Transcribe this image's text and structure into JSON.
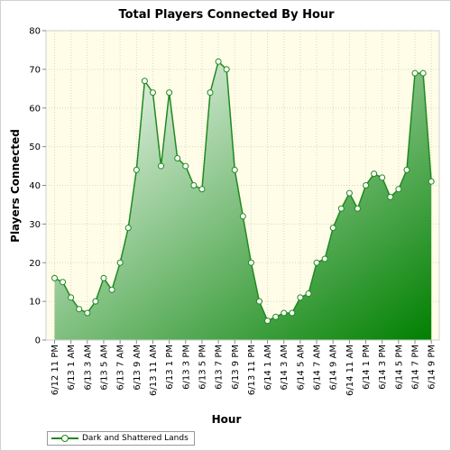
{
  "chart_data": {
    "type": "area",
    "title": "Total Players Connected By Hour",
    "xlabel": "Hour",
    "ylabel": "Players Connected",
    "ylim": [
      0,
      80
    ],
    "yticks": [
      0,
      10,
      20,
      30,
      40,
      50,
      60,
      70,
      80
    ],
    "grid": true,
    "legend_position": "bottom-left",
    "x_tick_labels": [
      "6/12 11 PM",
      "6/13 1 AM",
      "6/13 3 AM",
      "6/13 5 AM",
      "6/13 7 AM",
      "6/13 9 AM",
      "6/13 11 AM",
      "6/13 1 PM",
      "6/13 3 PM",
      "6/13 5 PM",
      "6/13 7 PM",
      "6/13 9 PM",
      "6/13 11 PM",
      "6/14 1 AM",
      "6/14 3 AM",
      "6/14 5 AM",
      "6/14 7 AM",
      "6/14 9 AM",
      "6/14 11 AM",
      "6/14 1 PM",
      "6/14 3 PM",
      "6/14 5 PM",
      "6/14 7 PM",
      "6/14 9 PM"
    ],
    "series": [
      {
        "name": "Dark and Shattered Lands",
        "values": [
          16,
          15,
          11,
          8,
          7,
          10,
          16,
          13,
          20,
          29,
          44,
          67,
          64,
          45,
          64,
          47,
          45,
          40,
          39,
          64,
          72,
          70,
          44,
          32,
          20,
          10,
          5,
          6,
          7,
          7,
          11,
          12,
          20,
          21,
          29,
          34,
          38,
          34,
          40,
          43,
          42,
          37,
          39,
          44,
          69,
          69,
          41
        ]
      }
    ],
    "colors": {
      "line": "#1f8a1f",
      "fill_light": "#ffffff",
      "fill_dark": "#008000",
      "background": "#fffde8",
      "grid": "#d8d8c0"
    }
  }
}
